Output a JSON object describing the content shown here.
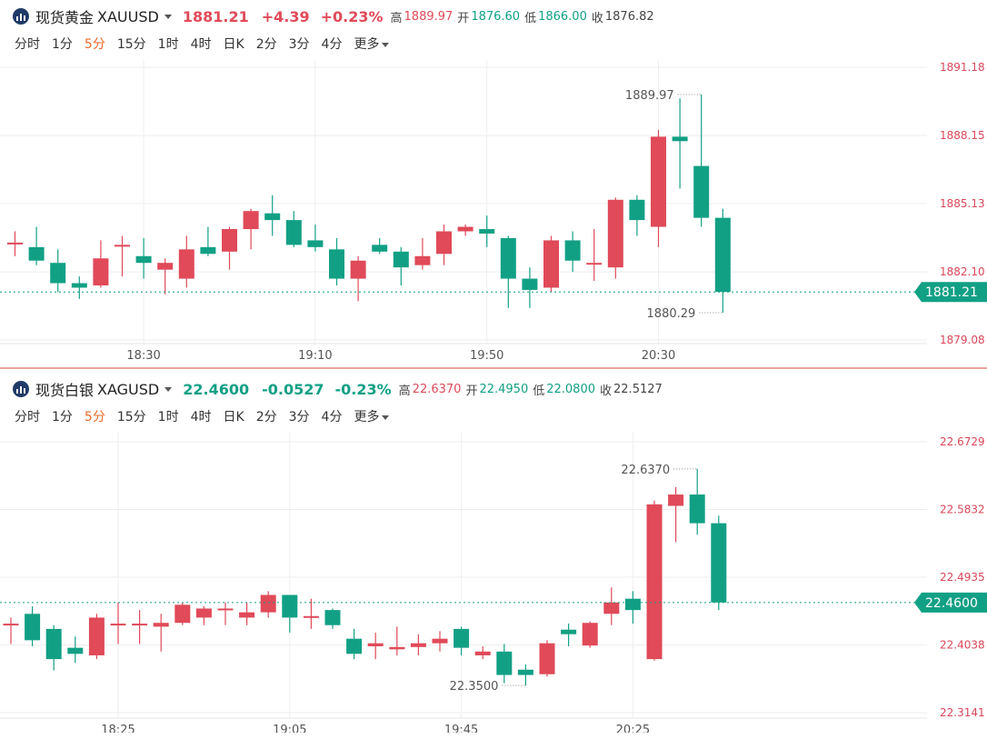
{
  "gold": {
    "name": "现货黄金",
    "code": "XAUUSD",
    "price": "1881.21",
    "change": "+4.39",
    "change_pct": "+0.23%",
    "high_label": "高",
    "high": "1889.97",
    "open_label": "开",
    "open": "1876.60",
    "low_label": "低",
    "low": "1866.00",
    "close_label": "收",
    "close": "1876.82"
  },
  "silver": {
    "name": "现货白银",
    "code": "XAGUSD",
    "price": "22.4600",
    "change": "-0.0527",
    "change_pct": "-0.23%",
    "high_label": "高",
    "high": "22.6370",
    "open_label": "开",
    "open": "22.4950",
    "low_label": "低",
    "low": "22.0800",
    "close_label": "收",
    "close": "22.5127"
  },
  "intervals": [
    "分时",
    "1分",
    "5分",
    "15分",
    "1时",
    "4时",
    "日K",
    "2分",
    "3分",
    "4分",
    "更多"
  ],
  "active_interval": "5分",
  "colors": {
    "up": "#e04a59",
    "down": "#12a085",
    "up_text": "#d9475a",
    "grid": "#eeeeee",
    "last": "#12a085"
  },
  "chart_data": [
    {
      "type": "candlestick",
      "title": "现货黄金 XAUUSD",
      "y_ticks": [
        "1891.18",
        "1888.15",
        "1885.13",
        "1882.10",
        "1879.08"
      ],
      "x_ticks": [
        {
          "label": "18:30",
          "index": 6
        },
        {
          "label": "19:10",
          "index": 14
        },
        {
          "label": "19:50",
          "index": 22
        },
        {
          "label": "20:30",
          "index": 30
        }
      ],
      "ylim": [
        1879.08,
        1891.18
      ],
      "last_price": "1881.21",
      "max_label": {
        "text": "1889.97",
        "index": 32
      },
      "min_label": {
        "text": "1880.29",
        "index": 33
      },
      "candles": [
        {
          "o": 1883.4,
          "h": 1883.9,
          "l": 1882.8,
          "c": 1883.4
        },
        {
          "o": 1883.2,
          "h": 1884.1,
          "l": 1882.4,
          "c": 1882.6
        },
        {
          "o": 1882.5,
          "h": 1883.1,
          "l": 1881.2,
          "c": 1881.6
        },
        {
          "o": 1881.6,
          "h": 1881.9,
          "l": 1880.9,
          "c": 1881.4
        },
        {
          "o": 1881.5,
          "h": 1883.5,
          "l": 1881.4,
          "c": 1882.7
        },
        {
          "o": 1883.3,
          "h": 1883.7,
          "l": 1881.9,
          "c": 1883.3
        },
        {
          "o": 1882.8,
          "h": 1883.6,
          "l": 1881.8,
          "c": 1882.5
        },
        {
          "o": 1882.2,
          "h": 1882.7,
          "l": 1881.1,
          "c": 1882.5
        },
        {
          "o": 1881.8,
          "h": 1883.7,
          "l": 1881.4,
          "c": 1883.1
        },
        {
          "o": 1883.2,
          "h": 1884.1,
          "l": 1882.8,
          "c": 1882.9
        },
        {
          "o": 1883.0,
          "h": 1884.1,
          "l": 1882.2,
          "c": 1884.0
        },
        {
          "o": 1884.0,
          "h": 1884.9,
          "l": 1883.1,
          "c": 1884.8
        },
        {
          "o": 1884.7,
          "h": 1885.5,
          "l": 1883.7,
          "c": 1884.4
        },
        {
          "o": 1884.4,
          "h": 1884.8,
          "l": 1883.2,
          "c": 1883.3
        },
        {
          "o": 1883.5,
          "h": 1884.2,
          "l": 1883.0,
          "c": 1883.2
        },
        {
          "o": 1883.1,
          "h": 1883.6,
          "l": 1881.5,
          "c": 1881.8
        },
        {
          "o": 1881.8,
          "h": 1882.8,
          "l": 1880.8,
          "c": 1882.6
        },
        {
          "o": 1883.3,
          "h": 1883.6,
          "l": 1882.9,
          "c": 1883.0
        },
        {
          "o": 1883.0,
          "h": 1883.2,
          "l": 1881.5,
          "c": 1882.3
        },
        {
          "o": 1882.4,
          "h": 1883.6,
          "l": 1882.2,
          "c": 1882.8
        },
        {
          "o": 1882.9,
          "h": 1884.2,
          "l": 1882.4,
          "c": 1883.9
        },
        {
          "o": 1883.9,
          "h": 1884.2,
          "l": 1883.7,
          "c": 1884.1
        },
        {
          "o": 1884.0,
          "h": 1884.6,
          "l": 1883.2,
          "c": 1883.8
        },
        {
          "o": 1883.6,
          "h": 1883.7,
          "l": 1880.5,
          "c": 1881.8
        },
        {
          "o": 1881.8,
          "h": 1882.3,
          "l": 1880.5,
          "c": 1881.3
        },
        {
          "o": 1881.4,
          "h": 1883.7,
          "l": 1881.2,
          "c": 1883.5
        },
        {
          "o": 1883.5,
          "h": 1883.9,
          "l": 1882.1,
          "c": 1882.6
        },
        {
          "o": 1882.5,
          "h": 1884.0,
          "l": 1881.7,
          "c": 1882.5
        },
        {
          "o": 1882.3,
          "h": 1885.4,
          "l": 1881.8,
          "c": 1885.3
        },
        {
          "o": 1885.3,
          "h": 1885.5,
          "l": 1883.7,
          "c": 1884.4
        },
        {
          "o": 1884.1,
          "h": 1888.4,
          "l": 1883.2,
          "c": 1888.1
        },
        {
          "o": 1888.1,
          "h": 1889.8,
          "l": 1885.8,
          "c": 1887.9
        },
        {
          "o": 1886.8,
          "h": 1889.97,
          "l": 1884.1,
          "c": 1884.5
        },
        {
          "o": 1884.5,
          "h": 1884.9,
          "l": 1880.29,
          "c": 1881.21
        }
      ]
    },
    {
      "type": "candlestick",
      "title": "现货白银 XAGUSD",
      "y_ticks": [
        "22.6729",
        "22.5832",
        "22.4935",
        "22.4038",
        "22.3141"
      ],
      "x_ticks": [
        {
          "label": "18:25",
          "index": 5
        },
        {
          "label": "19:05",
          "index": 13
        },
        {
          "label": "19:45",
          "index": 21
        },
        {
          "label": "20:25",
          "index": 29
        }
      ],
      "ylim": [
        22.3141,
        22.6729
      ],
      "last_price": "22.4600",
      "max_label": {
        "text": "22.6370",
        "index": 32
      },
      "min_label": {
        "text": "22.3500",
        "index": 24
      },
      "candles": [
        {
          "o": 22.432,
          "h": 22.44,
          "l": 22.405,
          "c": 22.432
        },
        {
          "o": 22.445,
          "h": 22.455,
          "l": 22.402,
          "c": 22.41
        },
        {
          "o": 22.425,
          "h": 22.43,
          "l": 22.37,
          "c": 22.385
        },
        {
          "o": 22.4,
          "h": 22.415,
          "l": 22.38,
          "c": 22.392
        },
        {
          "o": 22.39,
          "h": 22.445,
          "l": 22.385,
          "c": 22.44
        },
        {
          "o": 22.432,
          "h": 22.46,
          "l": 22.405,
          "c": 22.432
        },
        {
          "o": 22.432,
          "h": 22.45,
          "l": 22.405,
          "c": 22.432
        },
        {
          "o": 22.428,
          "h": 22.445,
          "l": 22.395,
          "c": 22.433
        },
        {
          "o": 22.433,
          "h": 22.46,
          "l": 22.43,
          "c": 22.457
        },
        {
          "o": 22.44,
          "h": 22.455,
          "l": 22.43,
          "c": 22.452
        },
        {
          "o": 22.452,
          "h": 22.46,
          "l": 22.43,
          "c": 22.452
        },
        {
          "o": 22.44,
          "h": 22.46,
          "l": 22.43,
          "c": 22.447
        },
        {
          "o": 22.447,
          "h": 22.475,
          "l": 22.44,
          "c": 22.47
        },
        {
          "o": 22.47,
          "h": 22.47,
          "l": 22.42,
          "c": 22.44
        },
        {
          "o": 22.442,
          "h": 22.465,
          "l": 22.425,
          "c": 22.442
        },
        {
          "o": 22.45,
          "h": 22.452,
          "l": 22.425,
          "c": 22.43
        },
        {
          "o": 22.412,
          "h": 22.425,
          "l": 22.385,
          "c": 22.392
        },
        {
          "o": 22.402,
          "h": 22.42,
          "l": 22.385,
          "c": 22.406
        },
        {
          "o": 22.398,
          "h": 22.428,
          "l": 22.39,
          "c": 22.401
        },
        {
          "o": 22.401,
          "h": 22.418,
          "l": 22.39,
          "c": 22.406
        },
        {
          "o": 22.406,
          "h": 22.422,
          "l": 22.395,
          "c": 22.412
        },
        {
          "o": 22.425,
          "h": 22.428,
          "l": 22.39,
          "c": 22.4
        },
        {
          "o": 22.39,
          "h": 22.402,
          "l": 22.385,
          "c": 22.395
        },
        {
          "o": 22.395,
          "h": 22.405,
          "l": 22.353,
          "c": 22.364
        },
        {
          "o": 22.371,
          "h": 22.378,
          "l": 22.35,
          "c": 22.364
        },
        {
          "o": 22.365,
          "h": 22.41,
          "l": 22.362,
          "c": 22.406
        },
        {
          "o": 22.424,
          "h": 22.432,
          "l": 22.402,
          "c": 22.418
        },
        {
          "o": 22.403,
          "h": 22.435,
          "l": 22.4,
          "c": 22.433
        },
        {
          "o": 22.445,
          "h": 22.48,
          "l": 22.43,
          "c": 22.46
        },
        {
          "o": 22.465,
          "h": 22.475,
          "l": 22.432,
          "c": 22.45
        },
        {
          "o": 22.385,
          "h": 22.595,
          "l": 22.383,
          "c": 22.59
        },
        {
          "o": 22.588,
          "h": 22.613,
          "l": 22.54,
          "c": 22.603
        },
        {
          "o": 22.603,
          "h": 22.637,
          "l": 22.55,
          "c": 22.565
        },
        {
          "o": 22.565,
          "h": 22.575,
          "l": 22.45,
          "c": 22.46
        }
      ]
    }
  ]
}
